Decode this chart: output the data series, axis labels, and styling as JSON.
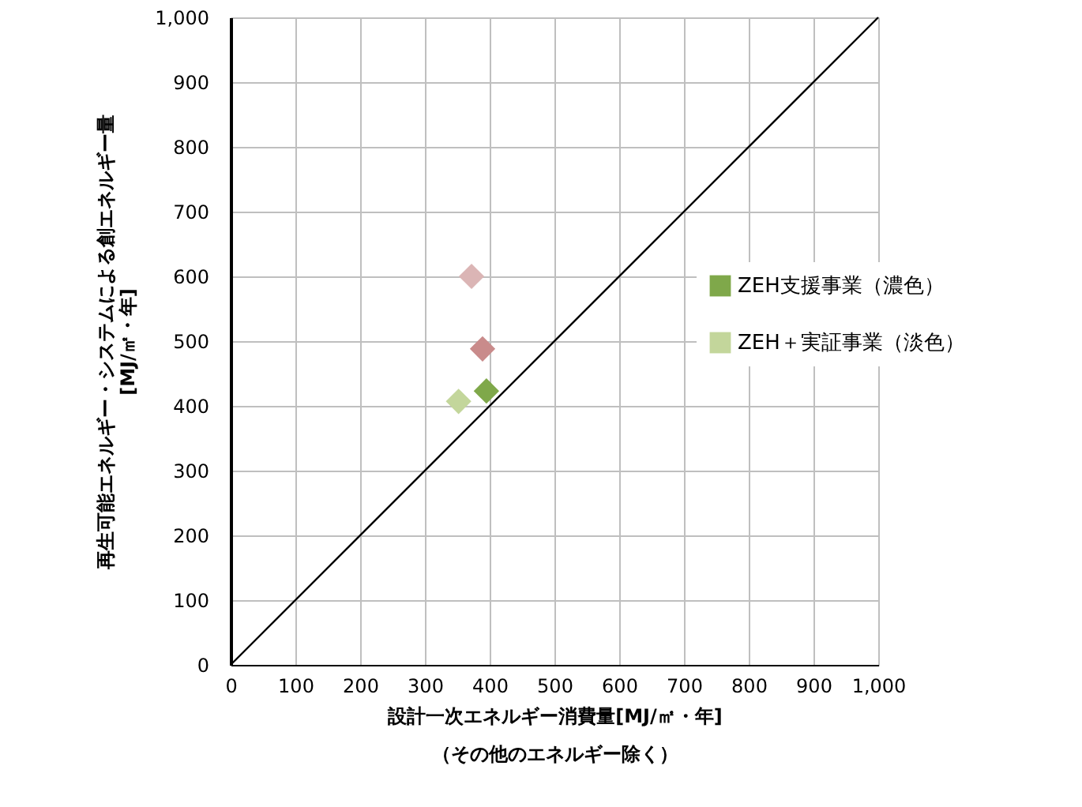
{
  "chart_data": {
    "type": "scatter",
    "xlabel": "設計一次エネルギー消費量[MJ/㎡・年]\n（その他のエネルギー除く）",
    "ylabel": "再生可能エネルギー・システムによる創エネルギー量\n[MJ/㎡・年]",
    "xlim": [
      0,
      1000
    ],
    "ylim": [
      0,
      1000
    ],
    "xticks": [
      0,
      100,
      200,
      300,
      400,
      500,
      600,
      700,
      800,
      900,
      {
        "value": 1000,
        "label": "1,000"
      }
    ],
    "yticks": [
      0,
      100,
      200,
      300,
      400,
      500,
      600,
      700,
      800,
      900,
      {
        "value": 1000,
        "label": "1,000"
      }
    ],
    "grid": true,
    "legend": "right",
    "marker": "diamond",
    "series": [
      {
        "name": "ZEH支援事業（濃色）",
        "color": "#7fa84a",
        "x": [
          395
        ],
        "values": [
          423
        ]
      },
      {
        "name": "ZEH＋実証事業（淡色）",
        "color": "#c3d69b",
        "x": [
          352
        ],
        "values": [
          407
        ]
      },
      {
        "color": "#c98b8b",
        "x": [
          389
        ],
        "values": [
          488
        ]
      },
      {
        "color": "#dbb5b5",
        "x": [
          372
        ],
        "values": [
          600
        ]
      },
      {
        "type": "line",
        "color": "#000000",
        "x": [
          0,
          1000
        ],
        "values": [
          0,
          1000
        ],
        "marker": "none"
      }
    ]
  }
}
